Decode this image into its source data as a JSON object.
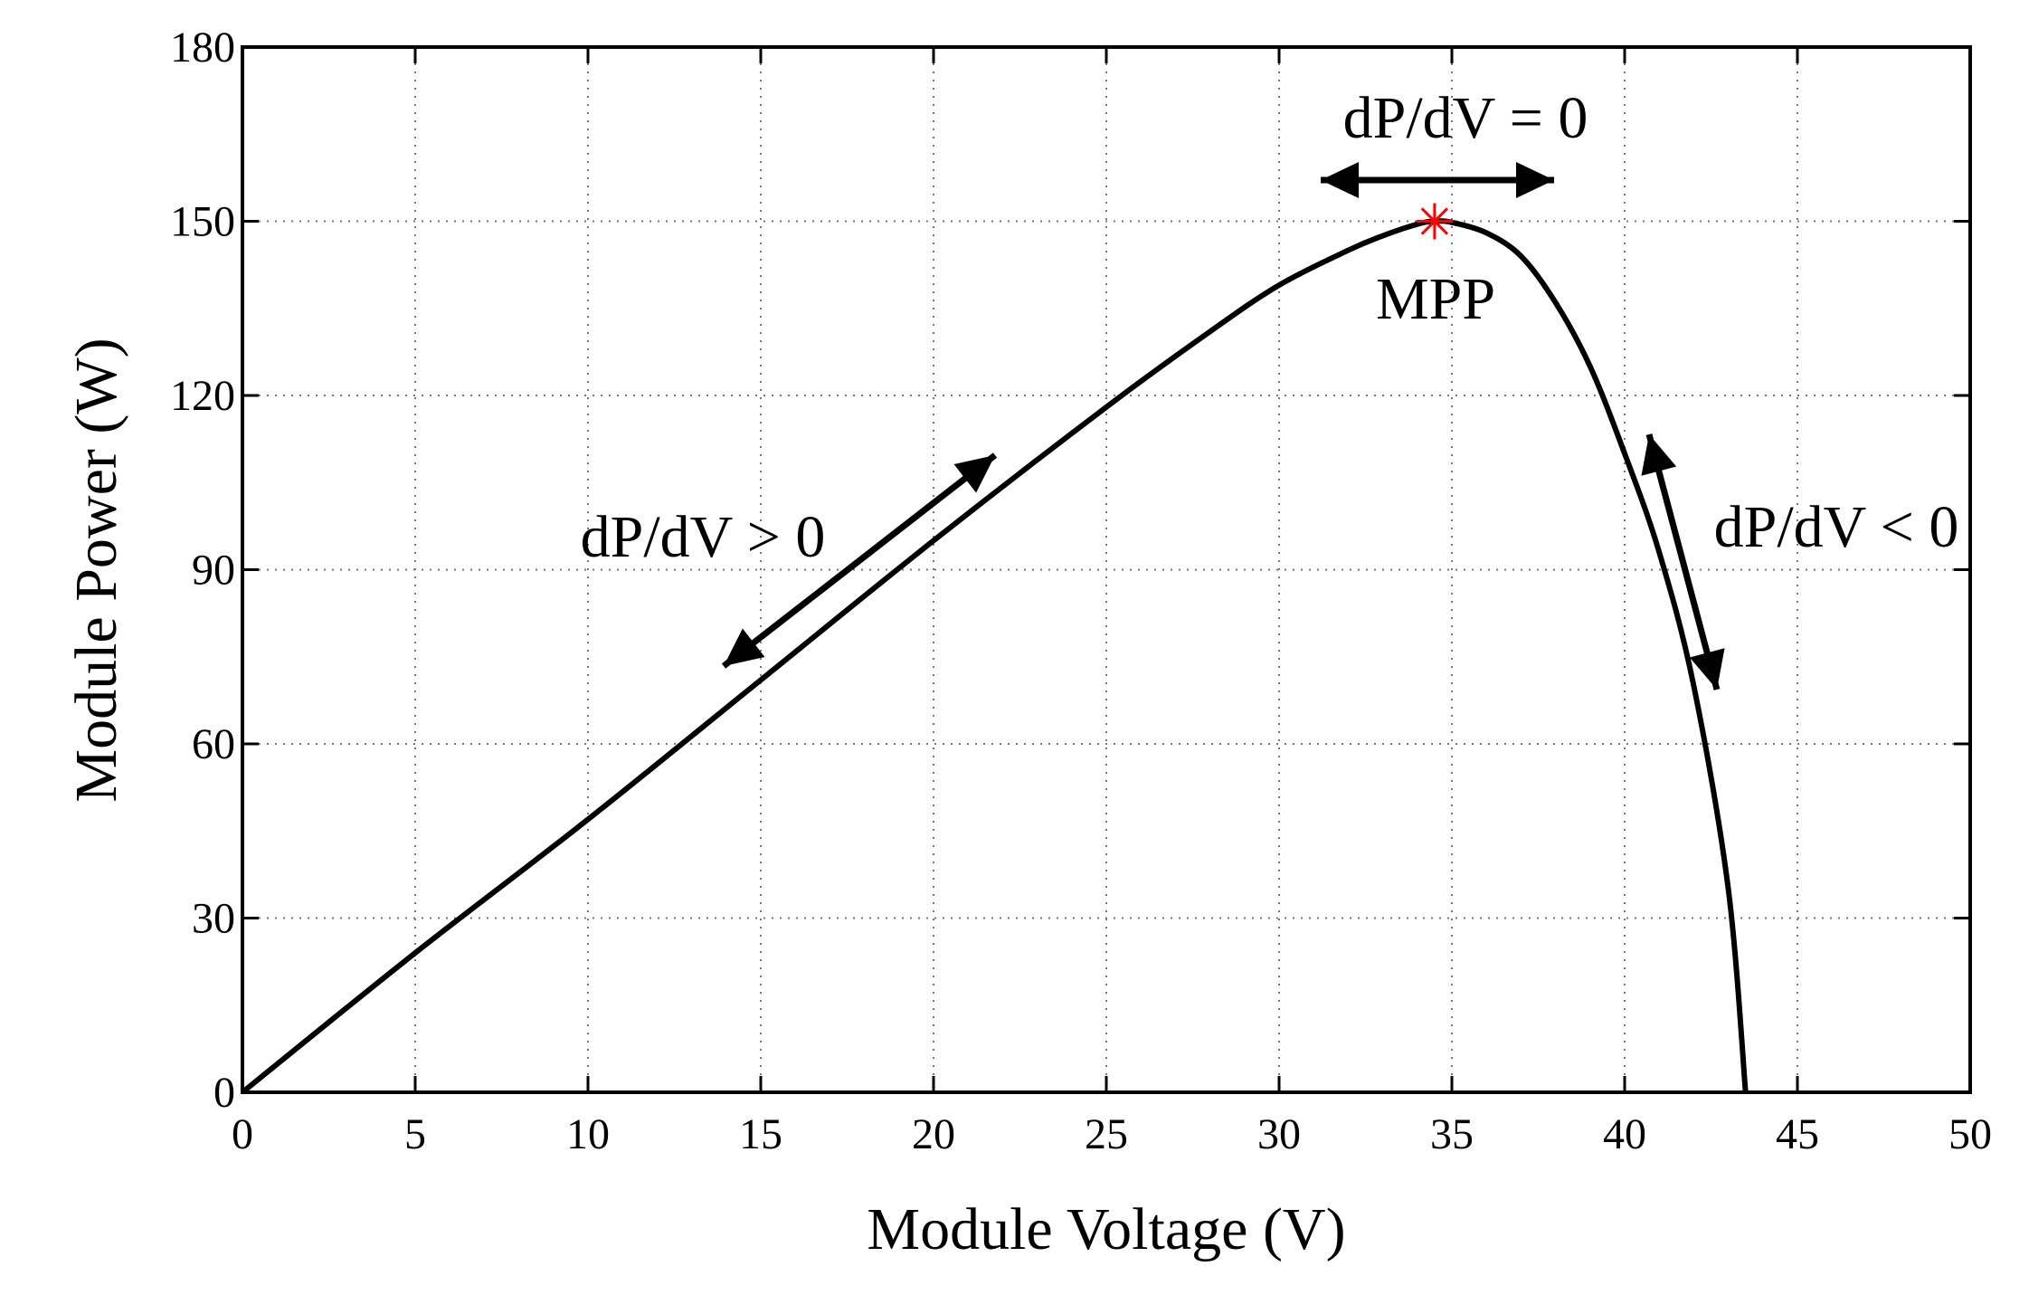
{
  "chart_data": {
    "type": "line",
    "title": "",
    "xlabel": "Module Voltage (V)",
    "ylabel": "Module Power (W)",
    "xlim": [
      0,
      50
    ],
    "ylim": [
      0,
      180
    ],
    "xticks": [
      0,
      5,
      10,
      15,
      20,
      25,
      30,
      35,
      40,
      45,
      50
    ],
    "yticks": [
      0,
      30,
      60,
      90,
      120,
      150,
      180
    ],
    "grid": true,
    "series": [
      {
        "color": "#000000",
        "x": [
          0,
          5,
          10,
          15,
          20,
          25,
          28,
          30,
          32,
          33,
          34,
          34.5,
          35,
          36,
          37,
          38,
          39,
          40,
          41,
          42,
          43,
          43.5
        ],
        "y": [
          0,
          24,
          47,
          71,
          95,
          118,
          131,
          139,
          145,
          147.5,
          149.5,
          150,
          149.8,
          148,
          144,
          136,
          125,
          110,
          93,
          70,
          35,
          0
        ]
      }
    ],
    "mpp": {
      "x": 34.5,
      "y": 150,
      "color": "#ff0000",
      "marker": "asterisk"
    },
    "annotations": {
      "positive_slope": "dP/dV > 0",
      "zero_slope": "dP/dV = 0",
      "negative_slope": "dP/dV < 0",
      "mpp_label": "MPP"
    }
  }
}
